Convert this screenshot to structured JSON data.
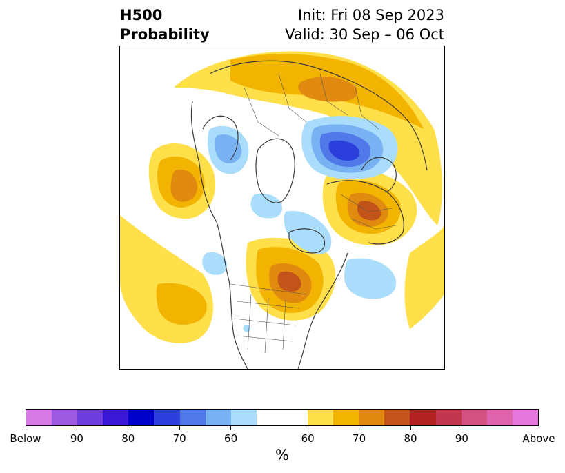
{
  "title": {
    "line1": "H500",
    "line2": "Probability"
  },
  "subtitle": {
    "init": "Init: Fri 08 Sep 2023",
    "valid": "Valid: 30 Sep – 06 Oct"
  },
  "colorbar": {
    "colors": [
      "#d778e6",
      "#9e5ae0",
      "#6e3ddb",
      "#3a17d4",
      "#0000cc",
      "#2b3fdc",
      "#5078e8",
      "#78b2f2",
      "#aadcfb",
      "#ffffff",
      "#ffffff",
      "#ffe04a",
      "#f2b400",
      "#e08a10",
      "#c2541a",
      "#b22222",
      "#c2374d",
      "#d15282",
      "#df63ad",
      "#e878dd"
    ],
    "labels": [
      "Below",
      "90",
      "80",
      "70",
      "60",
      "60",
      "70",
      "80",
      "90",
      "Above"
    ],
    "unit": "%"
  },
  "legend_colors": {
    "above_light": "#ffe04a",
    "above_mid": "#f2b400",
    "above_strong": "#e08a10",
    "above_stronger": "#c2541a",
    "below_light": "#aadcfb",
    "below_mid": "#78b2f2",
    "below_strong": "#5078e8",
    "below_stronger": "#2b3fdc"
  }
}
